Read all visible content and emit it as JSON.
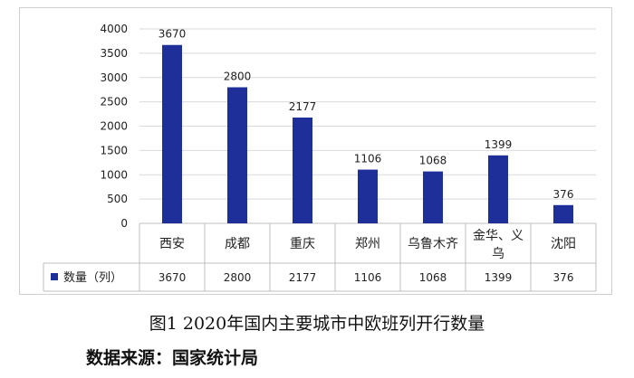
{
  "chart_data": {
    "type": "bar",
    "categories": [
      "西安",
      "成都",
      "重庆",
      "郑州",
      "乌鲁木齐",
      "金华、义乌",
      "沈阳"
    ],
    "series": [
      {
        "name": "数量（列）",
        "values": [
          3670,
          2800,
          2177,
          1106,
          1068,
          1399,
          376
        ],
        "color": "#1f2f9a"
      }
    ],
    "data_labels": [
      "3670",
      "2800",
      "2177",
      "1106",
      "1068",
      "1399",
      "376"
    ],
    "yticks": [
      "0",
      "500",
      "1000",
      "1500",
      "2000",
      "2500",
      "3000",
      "3500",
      "4000"
    ],
    "ylim": [
      0,
      4000
    ],
    "grid": true,
    "legend": "data-table",
    "title": "",
    "xlabel": "",
    "ylabel": ""
  },
  "caption": "图1   2020年国内主要城市中欧班列开行数量",
  "source": "数据来源：国家统计局"
}
